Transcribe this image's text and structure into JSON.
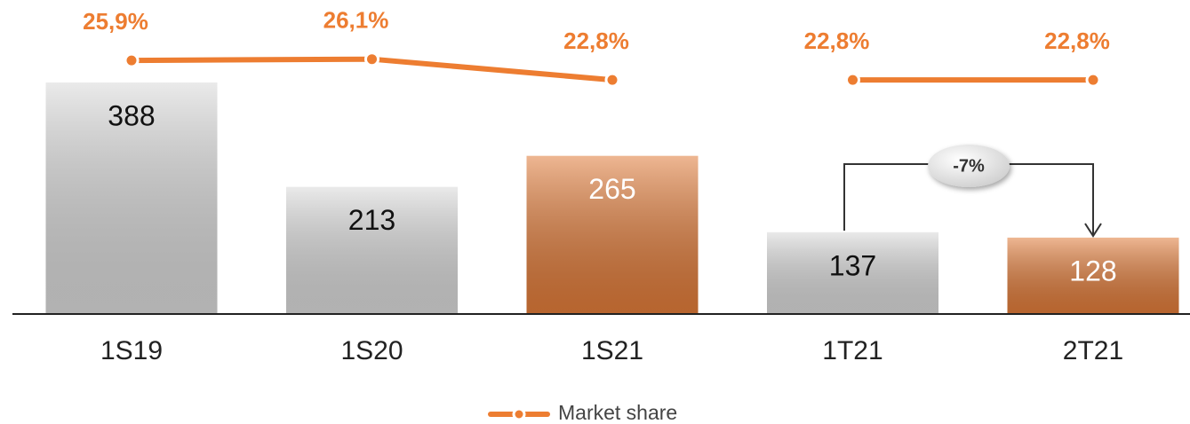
{
  "chart_data": {
    "type": "bar",
    "categories": [
      "1S19",
      "1S20",
      "1S21",
      "1T21",
      "2T21"
    ],
    "values": [
      388,
      213,
      265,
      137,
      128
    ],
    "colors": [
      "#d9d9d9",
      "#d9d9d9",
      "#e07b39",
      "#d9d9d9",
      "#e07b39"
    ],
    "ylim": [
      0,
      400
    ],
    "series": [
      {
        "name": "Market share",
        "type": "line",
        "axis": "y2",
        "color": "#ed7d31",
        "values": [
          25.9,
          26.1,
          22.8,
          22.8,
          22.8
        ],
        "value_labels": [
          "25,9%",
          "26,1%",
          "22,8%",
          "22,8%",
          "22,8%"
        ]
      }
    ],
    "line_break_before": [
      3
    ],
    "y2lim": [
      20,
      30
    ],
    "annotation": "-7%",
    "legend": "bottom"
  }
}
